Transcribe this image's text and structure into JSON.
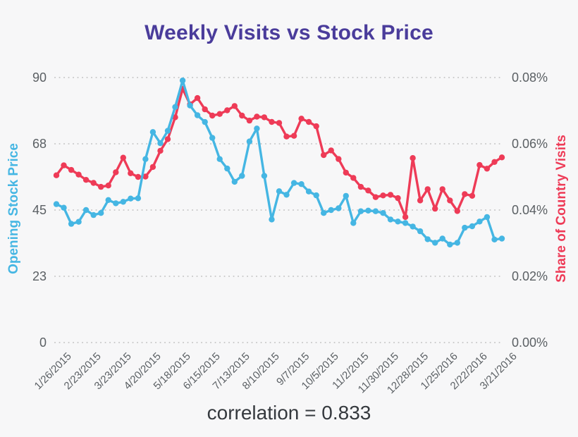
{
  "title": "Weekly Visits vs Stock Price",
  "annotation": "correlation = 0.833",
  "colors": {
    "background": "#f7f7f8",
    "title": "#4a3c9b",
    "stock_series": "#45b6e3",
    "visits_series": "#ee3b57",
    "gridline": "#c8c8c8",
    "tick_text": "#5b6064",
    "annotation_text": "#35393e"
  },
  "chart_data": {
    "type": "line",
    "title": "Weekly Visits vs Stock Price",
    "grid": "horizontal-dotted",
    "left_axis": {
      "label": "Opening Stock Price",
      "range": [
        0,
        90
      ],
      "ticks": [
        {
          "value": 0,
          "label": "0"
        },
        {
          "value": 22.5,
          "label": "23"
        },
        {
          "value": 45,
          "label": "45"
        },
        {
          "value": 67.5,
          "label": "68"
        },
        {
          "value": 90,
          "label": "90"
        }
      ]
    },
    "right_axis": {
      "label": "Share of Country Visits",
      "range": [
        0,
        0.08
      ],
      "ticks": [
        {
          "value": 0,
          "label": "0.00%"
        },
        {
          "value": 0.02,
          "label": "0.02%"
        },
        {
          "value": 0.04,
          "label": "0.04%"
        },
        {
          "value": 0.06,
          "label": "0.06%"
        },
        {
          "value": 0.08,
          "label": "0.08%"
        }
      ]
    },
    "x_axis": {
      "unit": "week",
      "n_points": 61,
      "ticks": [
        {
          "week": 0,
          "label": "1/26/2015"
        },
        {
          "week": 4,
          "label": "2/23/2015"
        },
        {
          "week": 8,
          "label": "3/23/2015"
        },
        {
          "week": 12,
          "label": "4/20/2015"
        },
        {
          "week": 16,
          "label": "5/18/2015"
        },
        {
          "week": 20,
          "label": "6/15/2015"
        },
        {
          "week": 24,
          "label": "7/13/2015"
        },
        {
          "week": 28,
          "label": "8/10/2015"
        },
        {
          "week": 32,
          "label": "9/7/2015"
        },
        {
          "week": 36,
          "label": "10/5/2015"
        },
        {
          "week": 40,
          "label": "11/2/2015"
        },
        {
          "week": 44,
          "label": "11/30/2015"
        },
        {
          "week": 48,
          "label": "12/28/2015"
        },
        {
          "week": 52,
          "label": "1/25/2016"
        },
        {
          "week": 56,
          "label": "2/22/2016"
        },
        {
          "week": 60,
          "label": "3/21/2016"
        }
      ]
    },
    "series": [
      {
        "name": "Share of Country Visits",
        "axis": "right",
        "color": "#ee3b57",
        "values": [
          0.0505,
          0.0535,
          0.0521,
          0.0507,
          0.0491,
          0.0482,
          0.047,
          0.0474,
          0.0514,
          0.0558,
          0.0511,
          0.05,
          0.0501,
          0.053,
          0.0579,
          0.0614,
          0.068,
          0.0766,
          0.0719,
          0.0738,
          0.0704,
          0.0685,
          0.069,
          0.0701,
          0.0714,
          0.0685,
          0.067,
          0.0682,
          0.068,
          0.0666,
          0.0663,
          0.0622,
          0.0624,
          0.0676,
          0.0666,
          0.0653,
          0.0566,
          0.058,
          0.0554,
          0.0513,
          0.0497,
          0.047,
          0.0459,
          0.0439,
          0.0444,
          0.0446,
          0.0436,
          0.0379,
          0.0557,
          0.0429,
          0.0463,
          0.0404,
          0.0463,
          0.0429,
          0.0397,
          0.0448,
          0.0443,
          0.0536,
          0.0525,
          0.0545,
          0.0559
        ]
      },
      {
        "name": "Opening Stock Price",
        "axis": "left",
        "color": "#45b6e3",
        "values": [
          47.0,
          45.8,
          40.3,
          41.0,
          45.0,
          43.3,
          44.0,
          48.4,
          47.3,
          47.8,
          48.9,
          49.0,
          62.3,
          71.5,
          67.7,
          71.9,
          80.0,
          89.0,
          80.5,
          77.2,
          74.9,
          69.5,
          62.3,
          59.1,
          54.6,
          56.6,
          68.3,
          72.7,
          56.6,
          41.8,
          51.4,
          50.2,
          54.2,
          53.8,
          51.3,
          50.0,
          44.0,
          45.0,
          45.6,
          49.8,
          40.6,
          44.6,
          44.8,
          44.6,
          44.0,
          41.8,
          41.1,
          40.6,
          39.4,
          37.8,
          35.1,
          33.9,
          35.3,
          33.3,
          33.9,
          39.0,
          39.5,
          41.1,
          42.6,
          35.0,
          35.3
        ]
      }
    ],
    "annotation": "correlation = 0.833"
  }
}
